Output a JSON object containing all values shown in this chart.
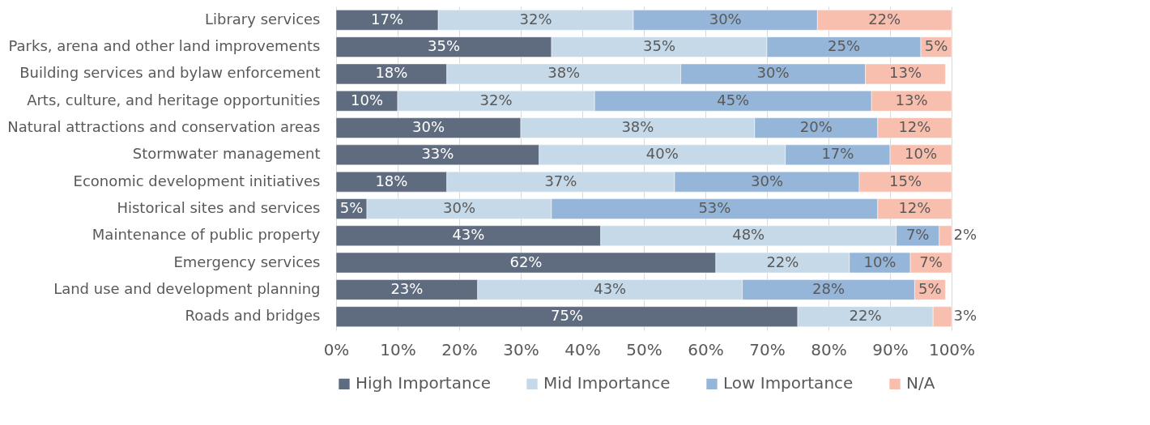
{
  "chart_data": {
    "type": "bar",
    "orientation": "horizontal",
    "stacked": true,
    "categories": [
      "Library services",
      "Parks, arena and other land improvements",
      "Building services and bylaw enforcement",
      "Arts, culture, and heritage opportunities",
      "Natural attractions and conservation areas",
      "Stormwater management",
      "Economic development initiatives",
      "Historical sites and services",
      "Maintenance of public property",
      "Emergency services",
      "Land use and development planning",
      "Roads and bridges"
    ],
    "series": [
      {
        "name": "High Importance",
        "color": "#5f6b7e",
        "values": [
          16.6,
          35,
          18,
          10,
          30,
          33,
          18,
          5,
          43,
          61.7,
          23,
          75
        ],
        "value_labels": [
          "17%",
          "35%",
          "18%",
          "10%",
          "30%",
          "33%",
          "18%",
          "5%",
          "43%",
          "62%",
          "23%",
          "75%"
        ]
      },
      {
        "name": "Mid Importance",
        "color": "#c5d9e8",
        "values": [
          31.7,
          35,
          38,
          32,
          38,
          40,
          37,
          30,
          48,
          21.7,
          43,
          22
        ],
        "value_labels": [
          "32%",
          "35%",
          "38%",
          "32%",
          "38%",
          "40%",
          "37%",
          "30%",
          "48%",
          "22%",
          "43%",
          "22%"
        ]
      },
      {
        "name": "Low Importance",
        "color": "#95b5d9",
        "values": [
          29.9,
          25,
          30,
          45,
          20,
          17,
          30,
          53,
          7,
          9.9,
          28,
          null
        ],
        "value_labels": [
          "30%",
          "25%",
          "30%",
          "45%",
          "20%",
          "17%",
          "30%",
          "53%",
          "7%",
          "10%",
          "28%",
          null
        ]
      },
      {
        "name": "N/A",
        "color": "#f9bfae",
        "values": [
          21.8,
          5,
          13,
          13,
          12,
          10,
          15,
          12,
          2,
          6.7,
          5,
          3
        ],
        "value_labels": [
          "22%",
          "5%",
          "13%",
          "13%",
          "12%",
          "10%",
          "15%",
          "12%",
          "2%",
          "7%",
          "5%",
          "3%"
        ]
      }
    ],
    "xlim": [
      0,
      100
    ],
    "xticks": [
      {
        "value": 0,
        "label": "0%"
      },
      {
        "value": 10,
        "label": "10%"
      },
      {
        "value": 20,
        "label": "20%"
      },
      {
        "value": 30,
        "label": "30%"
      },
      {
        "value": 40,
        "label": "40%"
      },
      {
        "value": 50,
        "label": "50%"
      },
      {
        "value": 60,
        "label": "60%"
      },
      {
        "value": 70,
        "label": "70%"
      },
      {
        "value": 80,
        "label": "80%"
      },
      {
        "value": 90,
        "label": "90%"
      },
      {
        "value": 100,
        "label": "100%"
      }
    ],
    "grid": "x",
    "legend": "bottom"
  }
}
